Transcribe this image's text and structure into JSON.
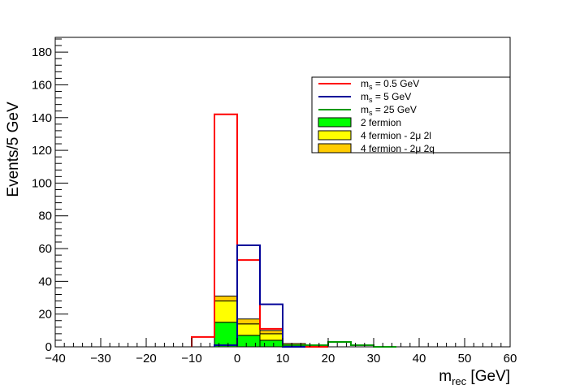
{
  "chart_data": {
    "type": "histogram",
    "xlabel_main": "m",
    "xlabel_sub": "rec",
    "xlabel_unit": " [GeV]",
    "ylabel": "Events/5 GeV",
    "xlim": [
      -40,
      60
    ],
    "ylim": [
      0,
      189
    ],
    "x_ticks": [
      -40,
      -30,
      -20,
      -10,
      0,
      10,
      20,
      30,
      40,
      50,
      60
    ],
    "y_ticks": [
      0,
      20,
      40,
      60,
      80,
      100,
      120,
      140,
      160,
      180
    ],
    "bin_edges": [
      -40,
      -35,
      -30,
      -25,
      -20,
      -15,
      -10,
      -5,
      0,
      5,
      10,
      15,
      20,
      25,
      30,
      35,
      40,
      45,
      50,
      55,
      60
    ],
    "stacked_backgrounds": [
      {
        "name": "2 fermion",
        "color": "#00ff00",
        "values": [
          0,
          0,
          0,
          0,
          0,
          0,
          0,
          15,
          7,
          4,
          0,
          0,
          0,
          0,
          0,
          0,
          0,
          0,
          0,
          0
        ]
      },
      {
        "name": "4 fermion - 2μ 2l",
        "color": "#ffff00",
        "values": [
          0,
          0,
          0,
          0,
          0,
          0,
          0,
          13,
          7,
          4,
          0,
          0,
          0,
          0,
          0,
          0,
          0,
          0,
          0,
          0
        ]
      },
      {
        "name": "4 fermion - 2μ 2q",
        "color": "#ffcc00",
        "values": [
          0,
          0,
          0,
          0,
          0,
          0,
          0,
          3,
          3,
          2,
          2,
          1,
          0,
          0,
          0,
          0,
          0,
          0,
          0,
          0
        ]
      }
    ],
    "signals": [
      {
        "name_main": "m",
        "name_sub": "s",
        "name_rest": " = 0.5 GeV",
        "color": "#ff0000",
        "values": [
          0,
          0,
          0,
          0,
          0,
          0,
          6,
          142,
          53,
          11,
          1,
          0,
          0,
          0,
          0,
          0,
          0,
          0,
          0,
          0
        ]
      },
      {
        "name_main": "m",
        "name_sub": "s",
        "name_rest": " = 5 GeV",
        "color": "#000099",
        "values": [
          0,
          0,
          0,
          0,
          0,
          0,
          0,
          1,
          62,
          26,
          0,
          0,
          0,
          0,
          0,
          0,
          0,
          0,
          0,
          0
        ]
      },
      {
        "name_main": "m",
        "name_sub": "s",
        "name_rest": " = 25 GeV",
        "color": "#009900",
        "values": [
          0,
          0,
          0,
          0,
          0,
          0,
          0,
          0,
          0,
          0,
          1,
          1,
          3,
          1,
          0,
          0,
          0,
          0,
          0,
          0
        ]
      }
    ],
    "legend_placement": "top-right"
  }
}
